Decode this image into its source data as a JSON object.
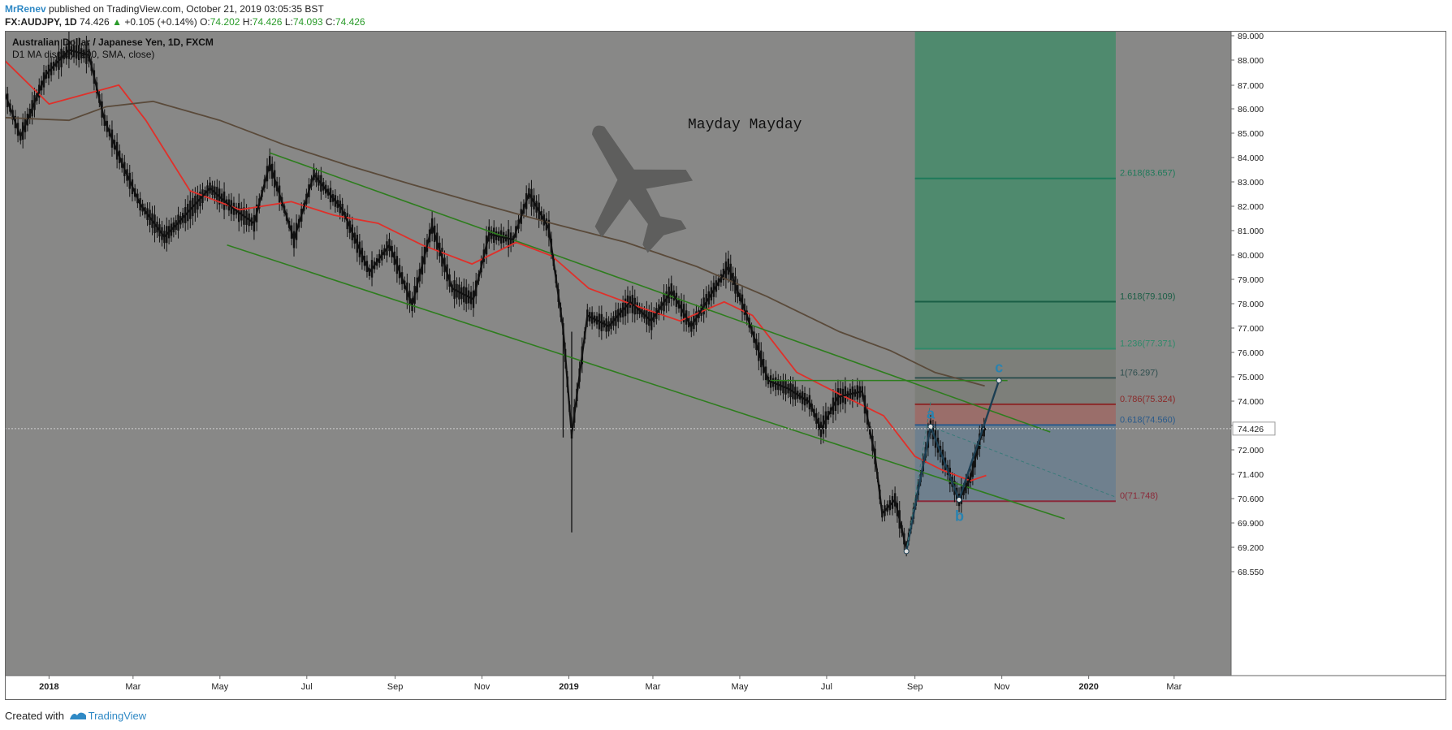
{
  "header": {
    "author": "MrRenev",
    "published_text": "published on TradingView.com, October 21, 2019 03:05:35 BST",
    "symbol": "FX:AUDJPY, 1D",
    "price": "74.426",
    "change": "+0.105 (+0.14%)",
    "open_label": "O:",
    "open": "74.202",
    "high_label": "H:",
    "high": "74.426",
    "low_label": "L:",
    "low": "74.093",
    "close_label": "C:",
    "close": "74.426"
  },
  "legend": {
    "title": "Australian Dollar / Japanese Yen, 1D, FXCM",
    "indicator": "D1 MA display (200, SMA, close)"
  },
  "annotation": {
    "text": "Mayday Mayday"
  },
  "wave_labels": {
    "a": "a",
    "b": "b",
    "c": "c"
  },
  "fib_levels": [
    {
      "ratio": "2.618",
      "value": 83.657,
      "label": "2.618(83.657)",
      "color": "#1f7a5a"
    },
    {
      "ratio": "1.618",
      "value": 79.109,
      "label": "1.618(79.109)",
      "color": "#1a5e45"
    },
    {
      "ratio": "1.236",
      "value": 77.371,
      "label": "1.236(77.371)",
      "color": "#2f8a6a"
    },
    {
      "ratio": "1",
      "value": 76.297,
      "label": "1(76.297)",
      "color": "#2f4f4f"
    },
    {
      "ratio": "0.786",
      "value": 75.324,
      "label": "0.786(75.324)",
      "color": "#8b2a2a"
    },
    {
      "ratio": "0.618",
      "value": 74.56,
      "label": "0.618(74.560)",
      "color": "#2a5a8b"
    },
    {
      "ratio": "0",
      "value": 71.748,
      "label": "0(71.748)",
      "color": "#8b2a3a"
    }
  ],
  "price_axis": {
    "ticks": [
      "89.000",
      "88.000",
      "87.000",
      "86.000",
      "85.000",
      "84.000",
      "83.000",
      "82.000",
      "81.000",
      "80.000",
      "79.000",
      "78.000",
      "77.000",
      "76.000",
      "75.000",
      "74.000",
      "73.000",
      "72.000",
      "71.400",
      "70.600",
      "69.900",
      "69.200",
      "68.550"
    ],
    "current_price": "74.426"
  },
  "time_axis": {
    "labels": [
      "2018",
      "Mar",
      "May",
      "Jul",
      "Sep",
      "Nov",
      "2019",
      "Mar",
      "May",
      "Jul",
      "Sep",
      "Nov",
      "2020",
      "Mar"
    ]
  },
  "colors": {
    "background": "#888887",
    "candle": "#111111",
    "ma_fast": "#e0302a",
    "ma_slow": "#5a4a3a",
    "channel": "#2e7d1e",
    "fib_upper_zone": "#4f8a6e",
    "fib_mid_zone": "#7d7f7a",
    "fib_red_zone": "#9a6e6a",
    "fib_blue_zone": "#6f808e",
    "wave": "#1c3e52",
    "wave_label": "#2a83b0"
  },
  "footer": {
    "created_with": "Created with",
    "brand": "TradingView"
  },
  "chart_data": {
    "type": "candlestick",
    "title": "Australian Dollar / Japanese Yen, 1D, FXCM",
    "ylim": [
      68.55,
      89.1
    ],
    "x_range": [
      "2017-12",
      "2020-04"
    ],
    "close_path": [
      [
        "2017-12-01",
        86.8
      ],
      [
        "2017-12-12",
        85.2
      ],
      [
        "2017-12-30",
        87.5
      ],
      [
        "2018-01-15",
        88.4
      ],
      [
        "2018-01-29",
        88.2
      ],
      [
        "2018-02-09",
        85.8
      ],
      [
        "2018-02-23",
        84.0
      ],
      [
        "2018-03-06",
        82.7
      ],
      [
        "2018-03-23",
        81.5
      ],
      [
        "2018-04-05",
        82.2
      ],
      [
        "2018-04-24",
        83.3
      ],
      [
        "2018-05-09",
        82.6
      ],
      [
        "2018-05-25",
        82.0
      ],
      [
        "2018-06-05",
        84.2
      ],
      [
        "2018-06-22",
        81.4
      ],
      [
        "2018-07-06",
        83.8
      ],
      [
        "2018-07-26",
        82.5
      ],
      [
        "2018-08-14",
        80.2
      ],
      [
        "2018-08-28",
        81.2
      ],
      [
        "2018-09-13",
        79.0
      ],
      [
        "2018-09-27",
        81.9
      ],
      [
        "2018-10-11",
        79.6
      ],
      [
        "2018-10-26",
        79.2
      ],
      [
        "2018-11-06",
        81.6
      ],
      [
        "2018-11-23",
        81.4
      ],
      [
        "2018-12-04",
        83.1
      ],
      [
        "2018-12-18",
        81.8
      ],
      [
        "2018-12-28",
        78.1
      ],
      [
        "2019-01-03",
        74.2
      ],
      [
        "2019-01-14",
        78.6
      ],
      [
        "2019-01-29",
        78.2
      ],
      [
        "2019-02-13",
        79.1
      ],
      [
        "2019-02-28",
        78.4
      ],
      [
        "2019-03-14",
        79.5
      ],
      [
        "2019-03-28",
        78.2
      ],
      [
        "2019-04-11",
        79.4
      ],
      [
        "2019-04-23",
        80.4
      ],
      [
        "2019-05-06",
        78.6
      ],
      [
        "2019-05-21",
        76.2
      ],
      [
        "2019-06-04",
        75.9
      ],
      [
        "2019-06-19",
        75.4
      ],
      [
        "2019-06-27",
        74.4
      ],
      [
        "2019-07-09",
        75.6
      ],
      [
        "2019-07-26",
        75.8
      ],
      [
        "2019-08-04",
        73.4
      ],
      [
        "2019-08-09",
        71.3
      ],
      [
        "2019-08-18",
        71.8
      ],
      [
        "2019-08-26",
        70.0
      ],
      [
        "2019-09-05",
        72.6
      ],
      [
        "2019-09-12",
        74.5
      ],
      [
        "2019-09-24",
        72.9
      ],
      [
        "2019-10-02",
        71.8
      ],
      [
        "2019-10-10",
        72.6
      ],
      [
        "2019-10-18",
        74.3
      ],
      [
        "2019-10-21",
        74.43
      ]
    ],
    "extreme_wicks": [
      {
        "date": "2018-12-28",
        "low": 74.1
      },
      {
        "date": "2019-01-03",
        "low": 70.6
      }
    ],
    "moving_averages": [
      {
        "name": "MA 50",
        "color": "#e0302a",
        "points": [
          [
            "2017-12-01",
            88.0
          ],
          [
            "2018-01-01",
            86.4
          ],
          [
            "2018-01-29",
            86.8
          ],
          [
            "2018-02-19",
            87.1
          ],
          [
            "2018-03-10",
            85.8
          ],
          [
            "2018-04-10",
            83.2
          ],
          [
            "2018-05-15",
            82.5
          ],
          [
            "2018-06-20",
            82.8
          ],
          [
            "2018-07-20",
            82.3
          ],
          [
            "2018-08-20",
            82.0
          ],
          [
            "2018-09-20",
            81.2
          ],
          [
            "2018-10-25",
            80.5
          ],
          [
            "2018-11-25",
            81.3
          ],
          [
            "2018-12-20",
            80.8
          ],
          [
            "2019-01-15",
            79.6
          ],
          [
            "2019-02-20",
            78.9
          ],
          [
            "2019-03-20",
            78.4
          ],
          [
            "2019-04-20",
            79.1
          ],
          [
            "2019-05-10",
            78.6
          ],
          [
            "2019-06-10",
            76.5
          ],
          [
            "2019-07-10",
            75.7
          ],
          [
            "2019-08-10",
            74.9
          ],
          [
            "2019-09-01",
            73.4
          ],
          [
            "2019-09-20",
            72.9
          ],
          [
            "2019-10-10",
            72.5
          ],
          [
            "2019-10-21",
            72.7
          ]
        ]
      },
      {
        "name": "MA 200",
        "color": "#5a4a3a",
        "points": [
          [
            "2017-12-01",
            85.9
          ],
          [
            "2018-01-15",
            85.8
          ],
          [
            "2018-02-10",
            86.3
          ],
          [
            "2018-03-15",
            86.5
          ],
          [
            "2018-05-01",
            85.8
          ],
          [
            "2018-06-15",
            84.9
          ],
          [
            "2018-08-01",
            84.1
          ],
          [
            "2018-09-15",
            83.4
          ],
          [
            "2018-11-01",
            82.7
          ],
          [
            "2018-12-20",
            82.0
          ],
          [
            "2019-02-10",
            81.3
          ],
          [
            "2019-04-01",
            80.4
          ],
          [
            "2019-05-20",
            79.3
          ],
          [
            "2019-07-10",
            78.0
          ],
          [
            "2019-08-15",
            77.3
          ],
          [
            "2019-09-15",
            76.5
          ],
          [
            "2019-10-20",
            76.0
          ]
        ]
      }
    ],
    "channel": [
      {
        "name": "upper",
        "from": [
          "2018-06-05",
          84.6
        ],
        "to": [
          "2019-12-05",
          74.3
        ]
      },
      {
        "name": "lower",
        "from": [
          "2018-05-06",
          81.2
        ],
        "to": [
          "2019-12-15",
          71.1
        ]
      }
    ],
    "horizontal_level": {
      "from": "2019-05-20",
      "to": "2019-11-05",
      "value": 76.2
    },
    "waves": [
      {
        "label": "a",
        "date": "2019-09-12",
        "value": 74.5
      },
      {
        "label": "b",
        "date": "2019-10-02",
        "value": 71.8
      },
      {
        "label": "c",
        "date": "2019-10-30",
        "value": 76.2
      }
    ],
    "wave_start": {
      "date": "2019-08-26",
      "value": 69.9
    },
    "fib_zone": {
      "from": "2019-09-01",
      "to": "2020-01-20",
      "top": 89.1
    }
  }
}
